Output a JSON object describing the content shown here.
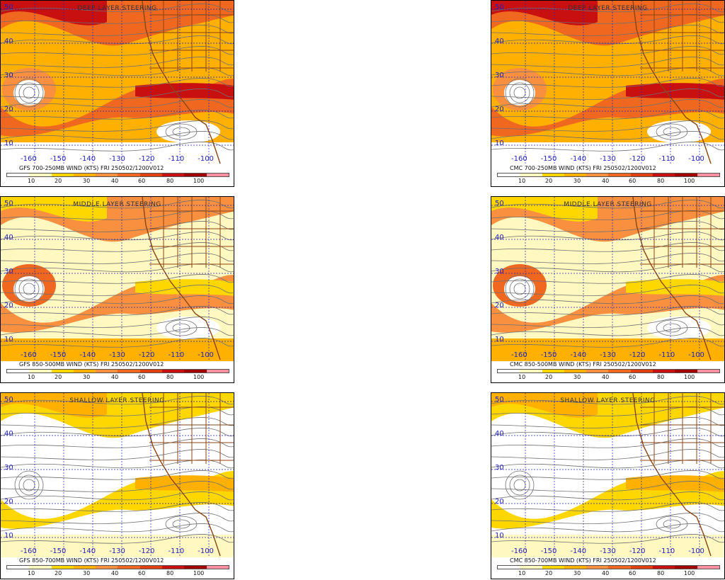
{
  "panels": [
    {
      "id": "gfs-deep",
      "title": "DEEP LAYER STEERING",
      "caption": "GFS 700-250MB WIND (KTS) FRI 250502/1200V012",
      "lats": [
        "50",
        "40",
        "30",
        "20",
        "10"
      ],
      "lons": [
        "-160",
        "-150",
        "-140",
        "-130",
        "-120",
        "-110",
        "-100"
      ],
      "intensity": "high"
    },
    {
      "id": "cmc-deep",
      "title": "DEEP LAYER STEERING",
      "caption": "CMC 700-250MB WIND (KTS) FRI 250502/1200V012",
      "lats": [
        "50",
        "40",
        "30",
        "20",
        "10"
      ],
      "lons": [
        "-160",
        "-150",
        "-140",
        "-130",
        "-120",
        "-110",
        "-100"
      ],
      "intensity": "high"
    },
    {
      "id": "gfs-middle",
      "title": "MIDDLE LAYER STEERING",
      "caption": "GFS 850-500MB WIND (KTS) FRI 250502/1200V012",
      "lats": [
        "50",
        "40",
        "30",
        "20",
        "10"
      ],
      "lons": [
        "-160",
        "-150",
        "-140",
        "-130",
        "-120",
        "-110",
        "-100"
      ],
      "intensity": "mid"
    },
    {
      "id": "cmc-middle",
      "title": "MIDDLE LAYER STEERING",
      "caption": "CMC 850-500MB WIND (KTS) FRI 250502/1200V012",
      "lats": [
        "50",
        "40",
        "30",
        "20",
        "10"
      ],
      "lons": [
        "-160",
        "-150",
        "-140",
        "-130",
        "-120",
        "-110",
        "-100"
      ],
      "intensity": "mid"
    },
    {
      "id": "gfs-shallow",
      "title": "SHALLOW LAYER STEERING",
      "caption": "GFS 850-700MB WIND (KTS) FRI 250502/1200V012",
      "lats": [
        "50",
        "40",
        "30",
        "20",
        "10"
      ],
      "lons": [
        "-160",
        "-150",
        "-140",
        "-130",
        "-120",
        "-110",
        "-100"
      ],
      "intensity": "low"
    },
    {
      "id": "cmc-shallow",
      "title": "SHALLOW LAYER STEERING",
      "caption": "CMC 850-700MB WIND (KTS) FRI 250502/1200V012",
      "lats": [
        "50",
        "40",
        "30",
        "20",
        "10"
      ],
      "lons": [
        "-160",
        "-150",
        "-140",
        "-130",
        "-120",
        "-110",
        "-100"
      ],
      "intensity": "low"
    }
  ],
  "colorbar": {
    "labels": [
      "10",
      "20",
      "30",
      "40",
      "60",
      "80",
      "100"
    ],
    "colors": [
      "#ffffff",
      "#fff8c0",
      "#ffd700",
      "#ffb000",
      "#f89040",
      "#f06820",
      "#e04010",
      "#c81010",
      "#a00000",
      "#ff90a0"
    ]
  }
}
